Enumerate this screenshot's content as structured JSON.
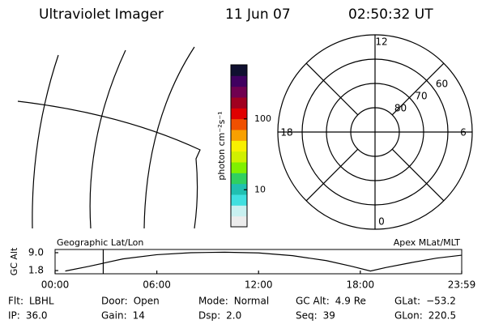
{
  "header": {
    "title": "Ultraviolet Imager",
    "date": "11 Jun 07",
    "time": "02:50:32 UT"
  },
  "colorbar": {
    "label": "photon cm⁻²s⁻¹",
    "log": true,
    "clim": [
      3,
      580
    ],
    "yticks": [
      10,
      100
    ],
    "colors": [
      "#ececec",
      "#c8f0f0",
      "#40e0e0",
      "#20c0b0",
      "#30d060",
      "#80f000",
      "#d0f000",
      "#f8f000",
      "#f8a000",
      "#f05000",
      "#e00000",
      "#a00020",
      "#700050",
      "#400060",
      "#101030"
    ]
  },
  "polar": {
    "rlim": [
      90,
      50
    ],
    "rings": [
      80,
      70,
      60,
      50
    ],
    "ring_labels": [
      60,
      70,
      80
    ],
    "mlt_labels": [
      12,
      18,
      6,
      0
    ]
  },
  "chart_data": {
    "type": "line",
    "ylabel": "GC Alt",
    "annotations": [
      "Geographic Lat/Lon",
      "Apex MLat/MLT"
    ],
    "x": [
      0.6,
      2,
      3,
      4,
      6,
      8,
      10,
      12,
      14,
      16,
      17.5,
      18.6,
      19.5,
      21,
      22.5,
      23.98
    ],
    "values": [
      1.6,
      3.5,
      5.0,
      6.5,
      8.2,
      9.0,
      9.2,
      8.9,
      7.8,
      5.8,
      3.5,
      1.6,
      3.0,
      5.0,
      6.8,
      8.0
    ],
    "color": "#000000",
    "marker_x": 2.84,
    "marker_color": "#e00000",
    "xlim": [
      0,
      23.98
    ],
    "xticks": [
      {
        "value": 0,
        "label": "00:00"
      },
      {
        "value": 6,
        "label": "06:00"
      },
      {
        "value": 12,
        "label": "12:00"
      },
      {
        "value": 18,
        "label": "18:00"
      },
      {
        "value": 23.98,
        "label": "23:59"
      }
    ],
    "ylim": [
      0.5,
      10.3
    ],
    "yticks": [
      {
        "value": 1.8,
        "label": "1.8"
      },
      {
        "value": 9.0,
        "label": "9.0"
      }
    ]
  },
  "footer": [
    [
      {
        "label": "Flt:",
        "value": "LBHL"
      },
      {
        "label": "Door:",
        "value": "Open"
      },
      {
        "label": "Mode:",
        "value": "Normal"
      },
      {
        "label": "GC Alt:",
        "value": "4.9 Re"
      },
      {
        "label": "GLat:",
        "value": "−53.2"
      }
    ],
    [
      {
        "label": "IP:",
        "value": "36.0"
      },
      {
        "label": "Gain:",
        "value": "14"
      },
      {
        "label": "Dsp:",
        "value": "2.0"
      },
      {
        "label": "Seq:",
        "value": "39"
      },
      {
        "label": "GLon:",
        "value": "220.5"
      }
    ]
  ]
}
